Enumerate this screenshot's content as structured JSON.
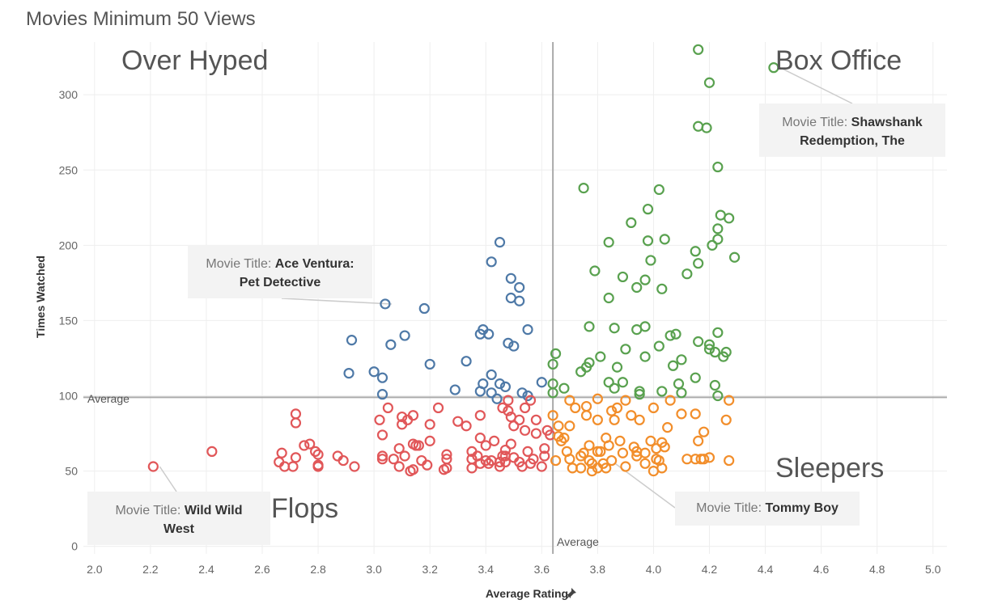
{
  "title": "Movies Minimum 50 Views",
  "colors": {
    "over_hyped": "#4e79a7",
    "box_office": "#59a14f",
    "flops": "#e15759",
    "sleepers": "#f28e2b",
    "reference_line": "#aaaaaa",
    "grid": "#eeeeee"
  },
  "quadrants": {
    "top_left": "Over Hyped",
    "top_right": "Box Office",
    "bottom_left": "Flops",
    "bottom_right": "Sleepers"
  },
  "reference_lines": {
    "horizontal_label": "Average",
    "vertical_label": "Average"
  },
  "axis_icon": "pin-icon",
  "annotations": [
    {
      "label": "Movie Title:",
      "value": "Shawshank Redemption, The"
    },
    {
      "label": "Movie Title:",
      "value": "Ace Ventura: Pet Detective"
    },
    {
      "label": "Movie Title:",
      "value": "Wild Wild West"
    },
    {
      "label": "Movie Title:",
      "value": "Tommy Boy"
    }
  ],
  "chart_data": {
    "type": "scatter",
    "title": "Movies Minimum 50 Views",
    "xlabel": "Average Rating",
    "ylabel": "Times Watched",
    "xlim": [
      1.96,
      5.05
    ],
    "ylim": [
      -5,
      335
    ],
    "x_ticks": [
      "2.0",
      "2.2",
      "2.4",
      "2.6",
      "2.8",
      "3.0",
      "3.2",
      "3.4",
      "3.6",
      "3.8",
      "4.0",
      "4.2",
      "4.4",
      "4.6",
      "4.8",
      "5.0"
    ],
    "y_ticks": [
      "0",
      "50",
      "100",
      "150",
      "200",
      "250",
      "300"
    ],
    "grid": true,
    "reference_lines": {
      "average_rating": 3.64,
      "average_times_watched": 99
    },
    "series": [
      {
        "key": "over_hyped",
        "points": [
          [
            3.04,
            161
          ],
          [
            3.42,
            189
          ],
          [
            3.45,
            202
          ],
          [
            3.49,
            178
          ],
          [
            3.52,
            172
          ],
          [
            3.49,
            165
          ],
          [
            3.52,
            163
          ],
          [
            3.18,
            158
          ],
          [
            3.39,
            144
          ],
          [
            3.55,
            144
          ],
          [
            3.38,
            141
          ],
          [
            3.41,
            141
          ],
          [
            3.11,
            140
          ],
          [
            2.92,
            137
          ],
          [
            3.48,
            135
          ],
          [
            3.06,
            134
          ],
          [
            3.5,
            133
          ],
          [
            3.33,
            123
          ],
          [
            3.2,
            121
          ],
          [
            2.91,
            115
          ],
          [
            3.0,
            116
          ],
          [
            3.03,
            112
          ],
          [
            3.42,
            114
          ],
          [
            3.39,
            108
          ],
          [
            3.45,
            108
          ],
          [
            3.47,
            106
          ],
          [
            3.6,
            109
          ],
          [
            3.38,
            103
          ],
          [
            3.29,
            104
          ],
          [
            3.03,
            101
          ],
          [
            3.42,
            102
          ],
          [
            3.53,
            102
          ],
          [
            3.55,
            100
          ],
          [
            3.44,
            98
          ]
        ]
      },
      {
        "key": "box_office",
        "points": [
          [
            4.16,
            330
          ],
          [
            4.43,
            318
          ],
          [
            4.2,
            308
          ],
          [
            4.16,
            279
          ],
          [
            4.19,
            278
          ],
          [
            4.23,
            252
          ],
          [
            3.75,
            238
          ],
          [
            4.02,
            237
          ],
          [
            3.98,
            224
          ],
          [
            4.24,
            220
          ],
          [
            4.27,
            218
          ],
          [
            3.92,
            215
          ],
          [
            4.23,
            211
          ],
          [
            3.84,
            202
          ],
          [
            4.04,
            204
          ],
          [
            4.23,
            204
          ],
          [
            3.98,
            203
          ],
          [
            4.21,
            200
          ],
          [
            4.15,
            196
          ],
          [
            4.29,
            192
          ],
          [
            3.99,
            190
          ],
          [
            4.16,
            188
          ],
          [
            3.79,
            183
          ],
          [
            4.12,
            181
          ],
          [
            3.89,
            179
          ],
          [
            3.97,
            177
          ],
          [
            3.94,
            172
          ],
          [
            4.03,
            171
          ],
          [
            3.84,
            165
          ],
          [
            3.77,
            146
          ],
          [
            3.86,
            145
          ],
          [
            3.94,
            144
          ],
          [
            3.97,
            146
          ],
          [
            4.08,
            141
          ],
          [
            4.06,
            140
          ],
          [
            4.23,
            142
          ],
          [
            4.16,
            136
          ],
          [
            4.2,
            134
          ],
          [
            4.02,
            133
          ],
          [
            4.2,
            131
          ],
          [
            3.9,
            131
          ],
          [
            4.22,
            129
          ],
          [
            4.26,
            129
          ],
          [
            3.65,
            128
          ],
          [
            3.81,
            126
          ],
          [
            3.97,
            126
          ],
          [
            4.25,
            126
          ],
          [
            4.1,
            124
          ],
          [
            3.64,
            121
          ],
          [
            3.77,
            122
          ],
          [
            3.76,
            119
          ],
          [
            4.07,
            120
          ],
          [
            3.87,
            119
          ],
          [
            3.74,
            116
          ],
          [
            4.15,
            112
          ],
          [
            3.84,
            109
          ],
          [
            3.89,
            109
          ],
          [
            3.64,
            108
          ],
          [
            4.09,
            108
          ],
          [
            4.22,
            107
          ],
          [
            3.95,
            103
          ],
          [
            3.64,
            102
          ],
          [
            3.68,
            105
          ],
          [
            3.86,
            105
          ],
          [
            4.03,
            103
          ],
          [
            4.1,
            102
          ],
          [
            4.23,
            100
          ],
          [
            3.95,
            101
          ]
        ]
      },
      {
        "key": "flops",
        "points": [
          [
            2.21,
            53
          ],
          [
            2.42,
            63
          ],
          [
            2.67,
            62
          ],
          [
            2.72,
            88
          ],
          [
            2.72,
            82
          ],
          [
            2.75,
            67
          ],
          [
            2.77,
            68
          ],
          [
            2.66,
            56
          ],
          [
            2.68,
            53
          ],
          [
            2.71,
            53
          ],
          [
            2.72,
            59
          ],
          [
            2.79,
            63
          ],
          [
            2.8,
            61
          ],
          [
            2.8,
            53
          ],
          [
            2.8,
            54
          ],
          [
            2.87,
            60
          ],
          [
            2.89,
            57
          ],
          [
            2.93,
            53
          ],
          [
            3.02,
            84
          ],
          [
            3.03,
            74
          ],
          [
            3.03,
            60
          ],
          [
            3.03,
            58
          ],
          [
            3.05,
            92
          ],
          [
            3.07,
            58
          ],
          [
            3.09,
            53
          ],
          [
            3.09,
            65
          ],
          [
            3.1,
            86
          ],
          [
            3.1,
            81
          ],
          [
            3.12,
            84
          ],
          [
            3.11,
            60
          ],
          [
            3.13,
            50
          ],
          [
            3.14,
            51
          ],
          [
            3.14,
            68
          ],
          [
            3.15,
            67
          ],
          [
            3.16,
            67
          ],
          [
            3.14,
            87
          ],
          [
            3.17,
            57
          ],
          [
            3.19,
            54
          ],
          [
            3.2,
            70
          ],
          [
            3.2,
            81
          ],
          [
            3.23,
            92
          ],
          [
            3.25,
            51
          ],
          [
            3.26,
            52
          ],
          [
            3.26,
            58
          ],
          [
            3.26,
            61
          ],
          [
            3.3,
            83
          ],
          [
            3.33,
            80
          ],
          [
            3.35,
            63
          ],
          [
            3.35,
            58
          ],
          [
            3.35,
            52
          ],
          [
            3.38,
            87
          ],
          [
            3.38,
            72
          ],
          [
            3.38,
            55
          ],
          [
            3.37,
            60
          ],
          [
            3.4,
            57
          ],
          [
            3.4,
            67
          ],
          [
            3.41,
            55
          ],
          [
            3.43,
            70
          ],
          [
            3.42,
            57
          ],
          [
            3.45,
            56
          ],
          [
            3.45,
            53
          ],
          [
            3.46,
            92
          ],
          [
            3.46,
            60
          ],
          [
            3.47,
            64
          ],
          [
            3.47,
            56
          ],
          [
            3.48,
            90
          ],
          [
            3.49,
            86
          ],
          [
            3.5,
            80
          ],
          [
            3.49,
            68
          ],
          [
            3.5,
            59
          ],
          [
            3.52,
            84
          ],
          [
            3.52,
            56
          ],
          [
            3.53,
            53
          ],
          [
            3.54,
            77
          ],
          [
            3.54,
            92
          ],
          [
            3.55,
            63
          ],
          [
            3.56,
            97
          ],
          [
            3.56,
            55
          ],
          [
            3.57,
            58
          ],
          [
            3.58,
            75
          ],
          [
            3.58,
            84
          ],
          [
            3.6,
            53
          ],
          [
            3.61,
            65
          ],
          [
            3.61,
            60
          ],
          [
            3.62,
            77
          ],
          [
            3.63,
            74
          ],
          [
            3.48,
            97
          ],
          [
            3.47,
            60
          ]
        ]
      },
      {
        "key": "sleepers",
        "points": [
          [
            3.64,
            87
          ],
          [
            3.66,
            80
          ],
          [
            3.65,
            57
          ],
          [
            3.66,
            73
          ],
          [
            3.67,
            70
          ],
          [
            3.68,
            72
          ],
          [
            3.69,
            63
          ],
          [
            3.7,
            97
          ],
          [
            3.7,
            80
          ],
          [
            3.71,
            52
          ],
          [
            3.72,
            92
          ],
          [
            3.74,
            60
          ],
          [
            3.74,
            52
          ],
          [
            3.76,
            93
          ],
          [
            3.76,
            87
          ],
          [
            3.77,
            67
          ],
          [
            3.77,
            57
          ],
          [
            3.78,
            55
          ],
          [
            3.78,
            50
          ],
          [
            3.8,
            84
          ],
          [
            3.8,
            52
          ],
          [
            3.8,
            98
          ],
          [
            3.81,
            63
          ],
          [
            3.82,
            55
          ],
          [
            3.83,
            52
          ],
          [
            3.83,
            72
          ],
          [
            3.84,
            67
          ],
          [
            3.85,
            57
          ],
          [
            3.85,
            90
          ],
          [
            3.86,
            84
          ],
          [
            3.87,
            92
          ],
          [
            3.88,
            70
          ],
          [
            3.89,
            62
          ],
          [
            3.9,
            53
          ],
          [
            3.92,
            87
          ],
          [
            3.93,
            66
          ],
          [
            3.94,
            63
          ],
          [
            3.94,
            60
          ],
          [
            3.95,
            84
          ],
          [
            3.97,
            55
          ],
          [
            3.97,
            62
          ],
          [
            3.99,
            70
          ],
          [
            4.0,
            92
          ],
          [
            4.0,
            50
          ],
          [
            4.01,
            58
          ],
          [
            4.01,
            65
          ],
          [
            4.02,
            57
          ],
          [
            4.03,
            52
          ],
          [
            4.03,
            69
          ],
          [
            4.04,
            66
          ],
          [
            4.05,
            79
          ],
          [
            4.06,
            97
          ],
          [
            4.1,
            88
          ],
          [
            4.12,
            58
          ],
          [
            4.15,
            88
          ],
          [
            4.15,
            58
          ],
          [
            4.16,
            70
          ],
          [
            4.17,
            58
          ],
          [
            4.18,
            76
          ],
          [
            4.18,
            58
          ],
          [
            4.2,
            59
          ],
          [
            4.26,
            84
          ],
          [
            4.27,
            57
          ],
          [
            4.27,
            97
          ],
          [
            3.8,
            63
          ],
          [
            3.75,
            62
          ],
          [
            3.7,
            58
          ],
          [
            3.9,
            97
          ]
        ]
      }
    ]
  }
}
